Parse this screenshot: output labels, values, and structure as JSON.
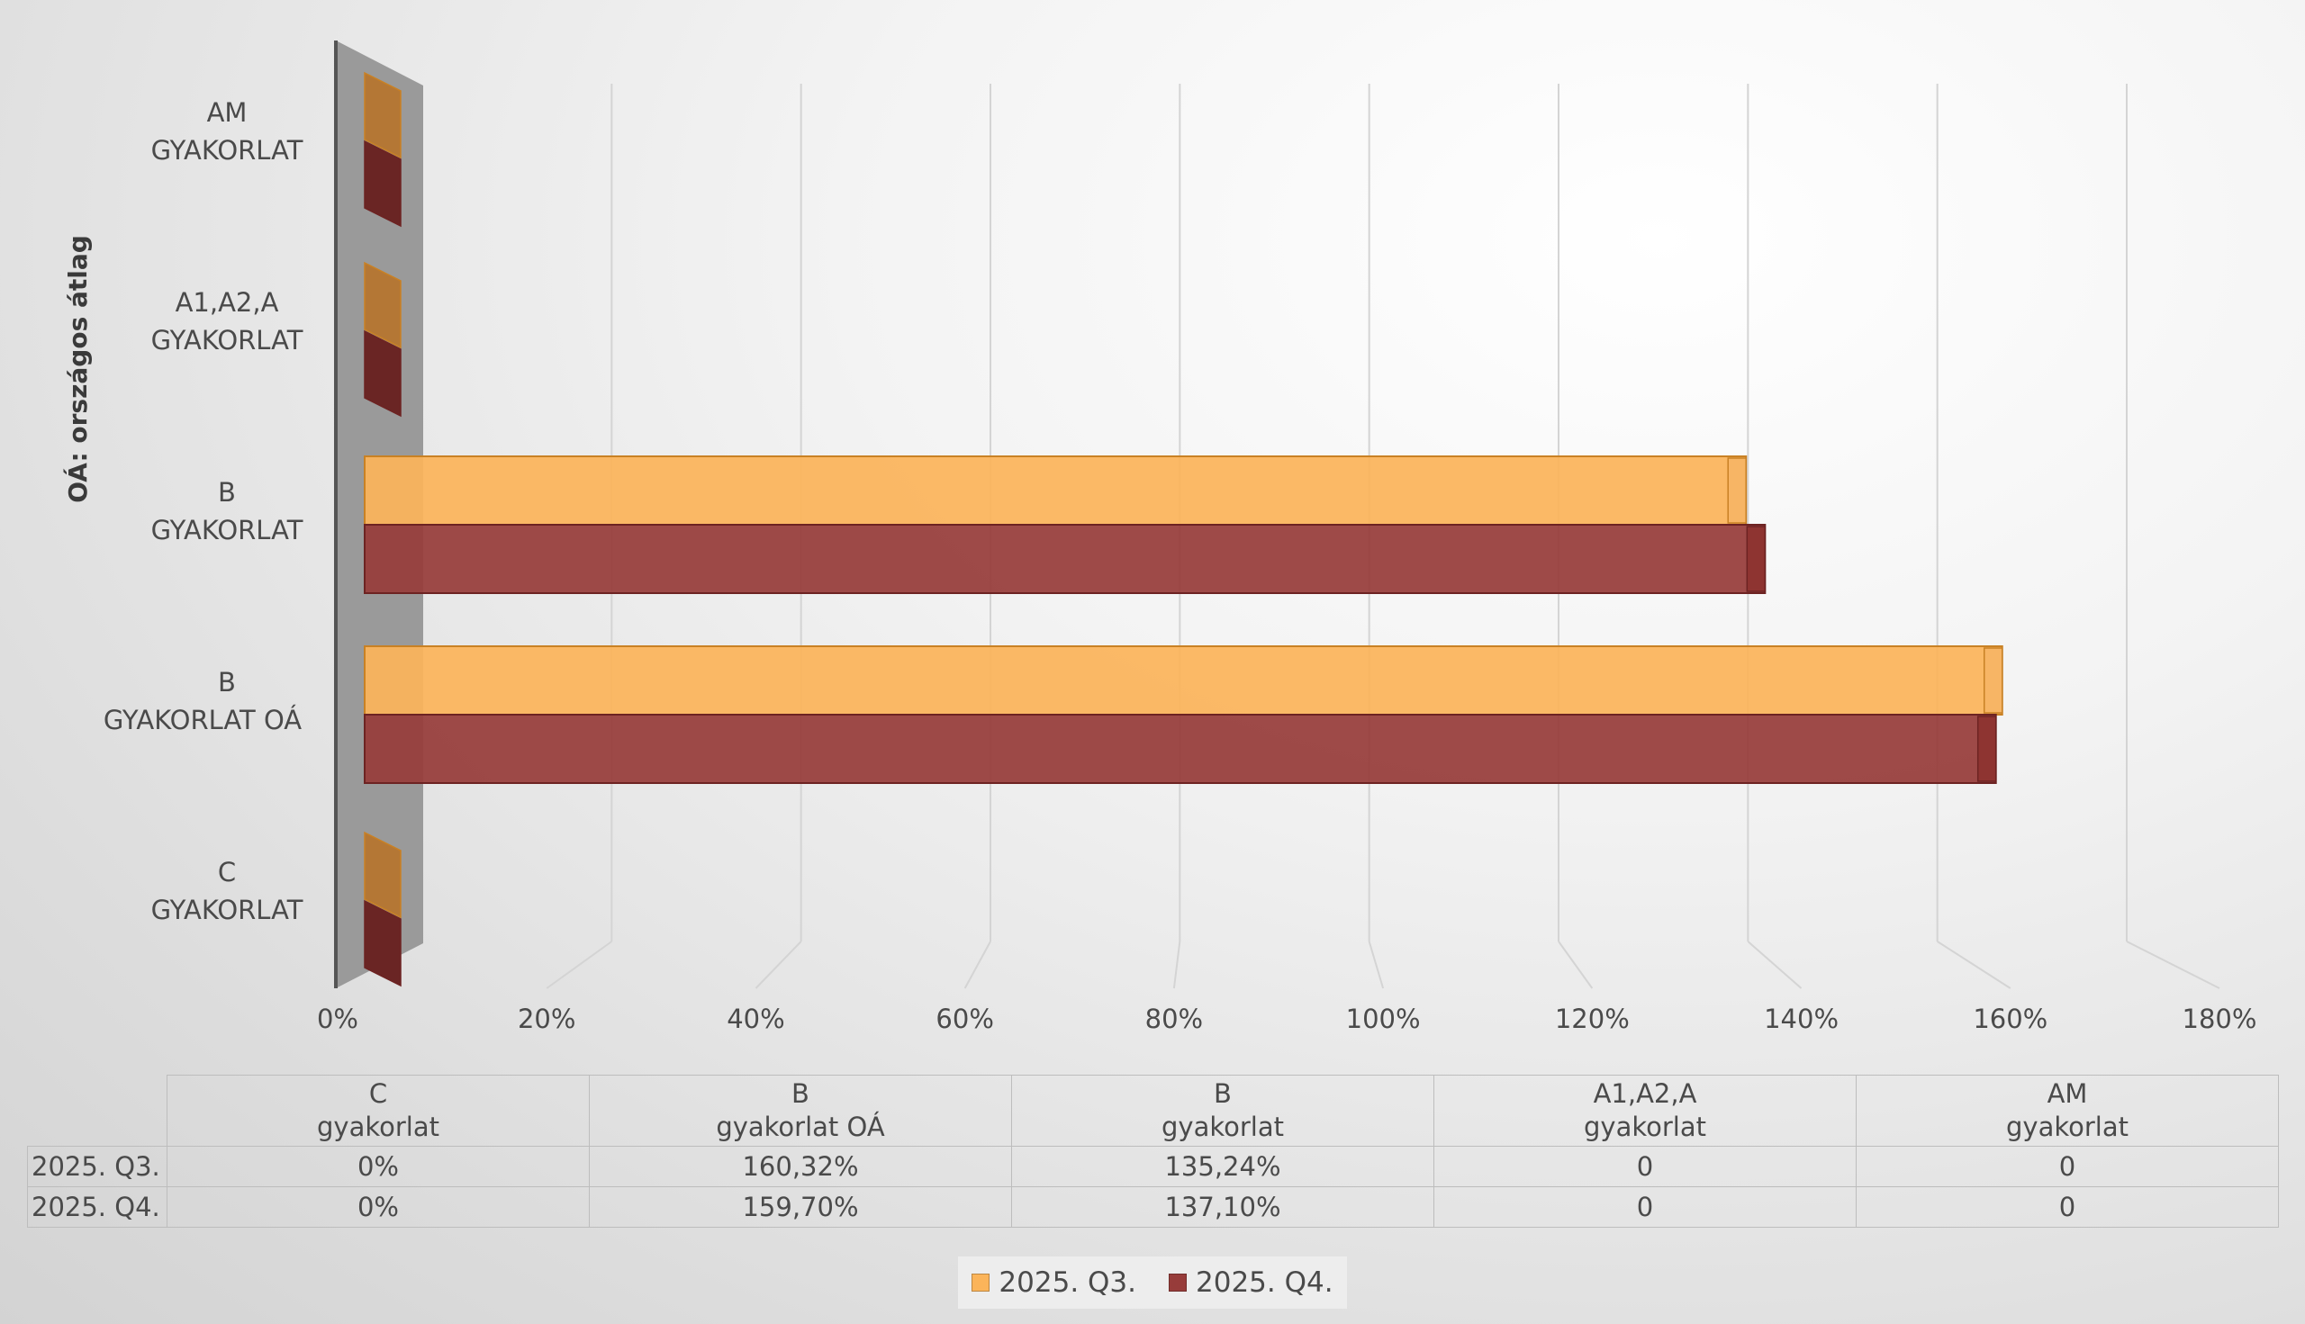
{
  "chart_data": {
    "type": "bar",
    "orientation": "horizontal",
    "ylabel": "OÁ: országos átlag",
    "categories": [
      "AM\nGYAKORLAT",
      "A1,A2,A\nGYAKORLAT",
      "B\nGYAKORLAT",
      "B\nGYAKORLAT OÁ",
      "C\nGYAKORLAT"
    ],
    "series": [
      {
        "name": "2025. Q3.",
        "color": "#fbb45a",
        "values": [
          0,
          0,
          135.24,
          160.32,
          0
        ]
      },
      {
        "name": "2025. Q4.",
        "color": "#973c3a",
        "values": [
          0,
          0,
          137.1,
          159.7,
          0
        ]
      }
    ],
    "xlim": [
      0,
      180
    ],
    "xticks": [
      "0%",
      "20%",
      "40%",
      "60%",
      "80%",
      "100%",
      "120%",
      "140%",
      "160%",
      "180%"
    ],
    "grid": true,
    "legend_position": "bottom",
    "table": {
      "columns": [
        "C\ngyakorlat",
        "B\ngyakorlat OÁ",
        "B\ngyakorlat",
        "A1,A2,A\ngyakorlat",
        "AM\ngyakorlat"
      ],
      "rows": [
        {
          "label": "2025. Q3.",
          "cells": [
            "0%",
            "160,32%",
            "135,24%",
            "0",
            "0"
          ]
        },
        {
          "label": "2025. Q4.",
          "cells": [
            "0%",
            "159,70%",
            "137,10%",
            "0",
            "0"
          ]
        }
      ]
    }
  }
}
